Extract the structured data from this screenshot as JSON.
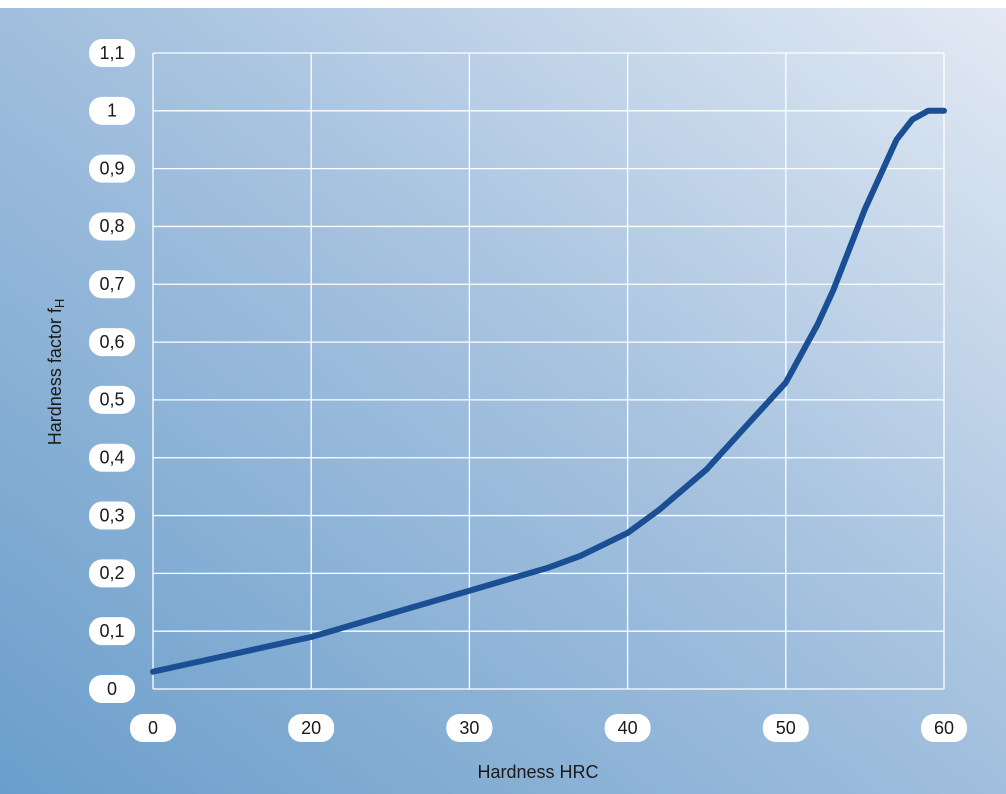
{
  "chart_data": {
    "type": "line",
    "x_label": "Hardness HRC",
    "y_label": "Hardness factor f",
    "y_label_subscript": "H",
    "x": [
      0,
      5,
      10,
      15,
      20,
      25,
      30,
      35,
      37,
      40,
      42,
      45,
      47,
      50,
      52,
      53,
      54,
      55,
      56,
      57,
      58,
      59,
      60
    ],
    "series": [
      {
        "color": "#1a4f94",
        "values": [
          0.03,
          0.045,
          0.06,
          0.075,
          0.09,
          0.13,
          0.17,
          0.21,
          0.23,
          0.27,
          0.31,
          0.38,
          0.44,
          0.53,
          0.63,
          0.69,
          0.76,
          0.83,
          0.89,
          0.95,
          0.985,
          1.0,
          1.0
        ]
      }
    ],
    "xlim": [
      0,
      60
    ],
    "xticks": [
      0,
      20,
      30,
      40,
      50,
      60
    ],
    "ylim": [
      0,
      1.1
    ],
    "yticks": [
      0,
      {
        "value": 0.1,
        "label": "0,1"
      },
      {
        "value": 0.2,
        "label": "0,2"
      },
      {
        "value": 0.3,
        "label": "0,3"
      },
      {
        "value": 0.4,
        "label": "0,4"
      },
      {
        "value": 0.5,
        "label": "0,5"
      },
      {
        "value": 0.6,
        "label": "0,6"
      },
      {
        "value": 0.7,
        "label": "0,7"
      },
      {
        "value": 0.8,
        "label": "0,8"
      },
      {
        "value": 0.9,
        "label": "0,9"
      },
      1,
      {
        "value": 1.1,
        "label": "1,1"
      }
    ],
    "grid": true
  }
}
